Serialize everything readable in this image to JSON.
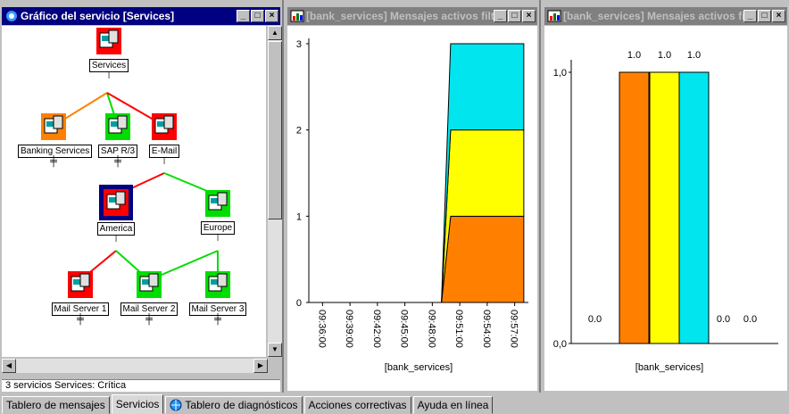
{
  "left_window": {
    "title": "Gráfico del servicio [Services]",
    "status": "3 servicios  Services: Crítica",
    "nodes": {
      "services": "Services",
      "banking": "Banking Services",
      "sap": "SAP R/3",
      "email": "E-Mail",
      "america": "America",
      "europe": "Europe",
      "ms1": "Mail Server 1",
      "ms2": "Mail Server 2",
      "ms3": "Mail Server 3"
    },
    "window_buttons": {
      "minimize": "_",
      "maximize": "□",
      "close": "×"
    }
  },
  "middle_window": {
    "title": "[bank_services] Mensajes activos filtrados",
    "window_buttons": {
      "minimize": "_",
      "maximize": "□",
      "close": "×"
    }
  },
  "right_window": {
    "title": "[bank_services] Mensajes activos filtrados",
    "window_buttons": {
      "minimize": "_",
      "maximize": "□",
      "close": "×"
    }
  },
  "tabs": [
    {
      "label": "Tablero de mensajes"
    },
    {
      "label": "Servicios"
    },
    {
      "label": "Tablero de diagnósticos"
    },
    {
      "label": "Acciones correctivas"
    },
    {
      "label": "Ayuda en línea"
    }
  ],
  "colors": {
    "orange": "#ff8000",
    "yellow": "#ffff00",
    "cyan": "#00e5ee"
  },
  "chart_data": [
    {
      "type": "area",
      "title": "",
      "xlabel": "[bank_services]",
      "ylabel": "",
      "x_ticks": [
        "09:36:00",
        "09:39:00",
        "09:42:00",
        "09:45:00",
        "09:48:00",
        "09:51:00",
        "09:54:00",
        "09:57:00"
      ],
      "y_ticks": [
        "0",
        "1",
        "2",
        "3"
      ],
      "ylim": [
        0,
        3
      ],
      "stacked": true,
      "series": [
        {
          "color": "#ff8000",
          "x": [
            "09:49:00",
            "09:50:00",
            "09:58:00"
          ],
          "y": [
            0,
            1,
            1
          ]
        },
        {
          "color": "#ffff00",
          "x": [
            "09:49:00",
            "09:50:00",
            "09:58:00"
          ],
          "y": [
            0,
            1,
            1
          ]
        },
        {
          "color": "#00e5ee",
          "x": [
            "09:49:00",
            "09:50:00",
            "09:58:00"
          ],
          "y": [
            0,
            1,
            1
          ]
        }
      ]
    },
    {
      "type": "bar",
      "title": "",
      "xlabel": "[bank_services]",
      "ylabel": "",
      "y_ticks": [
        "0,0",
        "1,0"
      ],
      "ylim": [
        0,
        1
      ],
      "values": [
        0.0,
        1.0,
        1.0,
        1.0,
        0.0,
        0.0
      ],
      "value_labels": [
        "0.0",
        "1.0",
        "1.0",
        "1.0",
        "0.0",
        "0.0"
      ],
      "colors": [
        "",
        "#ff8000",
        "#ffff00",
        "#00e5ee",
        "",
        ""
      ]
    }
  ]
}
